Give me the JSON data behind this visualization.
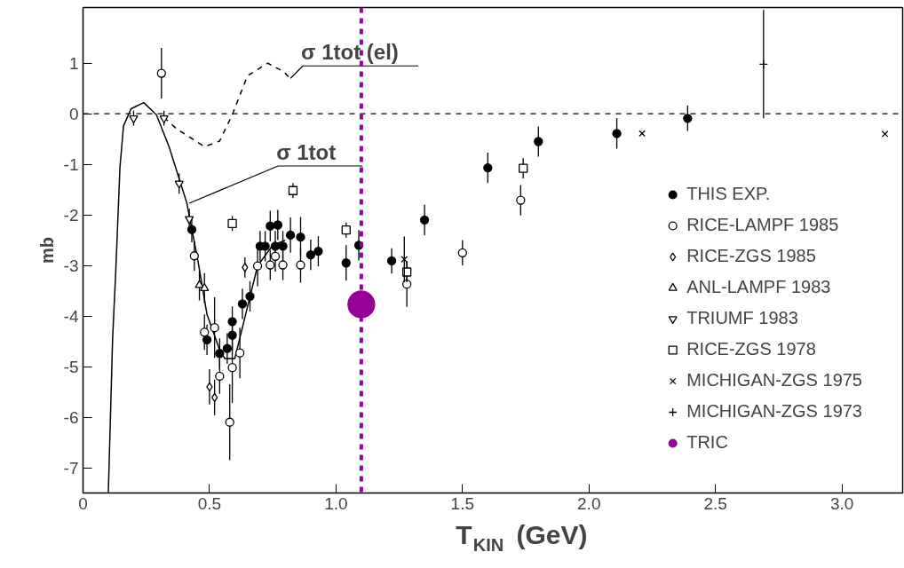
{
  "chart_data": {
    "type": "scatter",
    "xlabel": "T$_{KIN}$ (GeV)",
    "ylabel": "mb",
    "xlim": [
      0,
      3.24
    ],
    "ylim": [
      -7.5,
      2.1
    ],
    "xticks": [
      0,
      0.5,
      {
        "value": 1,
        "label": "1.0"
      },
      1.5,
      {
        "value": 2,
        "label": "2.0"
      },
      2.5,
      {
        "value": 3,
        "label": "3.0"
      }
    ],
    "yticks": [
      -7,
      -6,
      -5,
      -4,
      -3,
      -2,
      -1,
      0,
      1
    ],
    "grid": false,
    "legend": "right",
    "ref_lines": [
      {
        "axis": "y",
        "value": 0,
        "color": "#000000",
        "line_style": "dashed"
      },
      {
        "axis": "x",
        "value": 1.1,
        "color": "#990099",
        "line_style": "dashed"
      }
    ],
    "annotations": [
      {
        "text": "σ 1tot (el)",
        "x": 0.82,
        "y": 0.7
      },
      {
        "text": "σ 1tot",
        "x": 0.42,
        "y": -1.77
      }
    ],
    "series": [
      {
        "type": "line",
        "color": "#000000",
        "line_style": "solid",
        "marker": "none",
        "x": [
          0.1,
          0.117,
          0.13,
          0.146,
          0.16,
          0.19,
          0.24,
          0.29,
          0.34,
          0.41,
          0.455,
          0.49,
          0.54,
          0.56,
          0.6,
          0.69,
          0.75,
          0.8
        ],
        "values": [
          -7.5,
          -4.44,
          -3.04,
          -1.06,
          -0.24,
          0.1,
          0.22,
          -0.02,
          -0.65,
          -1.76,
          -2.93,
          -3.97,
          -4.67,
          -4.84,
          -4.84,
          -3.01,
          -2.6,
          -2.5
        ]
      },
      {
        "type": "line",
        "color": "#000000",
        "line_style": "dashed",
        "marker": "none",
        "x": [
          0.32,
          0.37,
          0.48,
          0.54,
          0.59,
          0.65,
          0.73,
          0.79,
          0.82
        ],
        "values": [
          -0.07,
          -0.3,
          -0.65,
          -0.54,
          -0.02,
          0.75,
          1.0,
          0.84,
          0.7
        ]
      },
      {
        "name": "THIS EXP.",
        "color": "#000000",
        "marker": "circle",
        "x": [
          0.43,
          0.49,
          0.54,
          0.57,
          0.59,
          0.59,
          0.63,
          0.66,
          0.7,
          0.72,
          0.74,
          0.76,
          0.77,
          0.79,
          0.82,
          0.86,
          0.9,
          0.93,
          1.04,
          1.09,
          1.22,
          1.35,
          1.6,
          1.8,
          2.11,
          2.39
        ],
        "values": [
          -2.29,
          -4.47,
          -4.74,
          -4.64,
          -4.38,
          -4.11,
          -3.76,
          -3.61,
          -2.62,
          -2.62,
          -2.22,
          -2.62,
          -2.2,
          -2.62,
          -2.4,
          -2.44,
          -2.79,
          -2.72,
          -2.95,
          -2.6,
          -2.91,
          -2.1,
          -1.07,
          -0.55,
          -0.39,
          -0.09
        ],
        "errors": [
          0.25,
          0.3,
          0.3,
          0.3,
          0.3,
          0.3,
          0.3,
          0.3,
          0.3,
          0.3,
          0.3,
          0.3,
          0.3,
          0.3,
          0.35,
          0.4,
          0.3,
          0.3,
          0.35,
          0.3,
          0.25,
          0.3,
          0.3,
          0.3,
          0.3,
          0.25
        ]
      },
      {
        "name": "RICE-LAMPF 1985",
        "color": "#000000",
        "marker": "circle",
        "x": [
          0.31,
          0.44,
          0.48,
          0.52,
          0.54,
          0.58,
          0.59,
          0.62,
          0.69,
          0.74,
          0.76,
          0.79,
          0.86,
          1.28,
          1.5,
          1.73
        ],
        "values": [
          0.8,
          -2.81,
          -4.32,
          -4.23,
          -5.19,
          -6.1,
          -5.02,
          -4.73,
          -3.01,
          -2.99,
          -2.82,
          -2.99,
          -2.99,
          -3.37,
          -2.75,
          -1.71
        ],
        "errors": [
          0.5,
          0.3,
          0.35,
          0.6,
          0.35,
          0.75,
          0.7,
          0.5,
          0.4,
          0.3,
          0.3,
          0.3,
          0.35,
          0.45,
          0.25,
          0.3
        ]
      },
      {
        "name": "RICE-ZGS 1985",
        "color": "#000000",
        "marker": "diamond",
        "x": [
          0.5,
          0.52,
          0.64
        ],
        "values": [
          -5.4,
          -5.61,
          -3.04
        ],
        "errors": [
          0.35,
          0.35,
          0.2
        ]
      },
      {
        "name": "ANL-LAMPF 1983",
        "color": "#000000",
        "marker": "triangle",
        "x": [
          0.46,
          0.48
        ],
        "values": [
          -3.39,
          -3.45
        ],
        "errors": [
          0.3,
          0.3
        ]
      },
      {
        "name": "TRIUMF 1983",
        "color": "#000000",
        "marker": "triangle",
        "x": [
          0.2,
          0.32,
          0.38,
          0.42
        ],
        "values": [
          -0.09,
          -0.09,
          -1.38,
          -2.08
        ],
        "errors": [
          0.15,
          0.15,
          0.2,
          0.2
        ]
      },
      {
        "name": "RICE-ZGS 1978",
        "color": "#000000",
        "marker": "square",
        "x": [
          0.59,
          0.83,
          1.04,
          1.28,
          1.74
        ],
        "values": [
          -2.17,
          -1.52,
          -2.3,
          -3.13,
          -1.08
        ],
        "errors": [
          0.15,
          0.15,
          0.15,
          0.2,
          0.2
        ]
      },
      {
        "name": "MICHIGAN-ZGS 1975",
        "color": "#000000",
        "marker": "x",
        "x": [
          1.27,
          2.21,
          3.17
        ],
        "values": [
          -2.88,
          -0.39,
          -0.4
        ],
        "errors": [
          0.45,
          null,
          null
        ]
      },
      {
        "name": "MICHIGAN-ZGS 1973",
        "color": "#000000",
        "marker": "cross",
        "x": [
          2.69
        ],
        "values": [
          0.98
        ],
        "errors": [
          1.07
        ]
      },
      {
        "name": "TRIC",
        "color": "#990099",
        "marker": "circle",
        "x": [
          1.1
        ],
        "values": [
          -3.77
        ]
      }
    ]
  }
}
